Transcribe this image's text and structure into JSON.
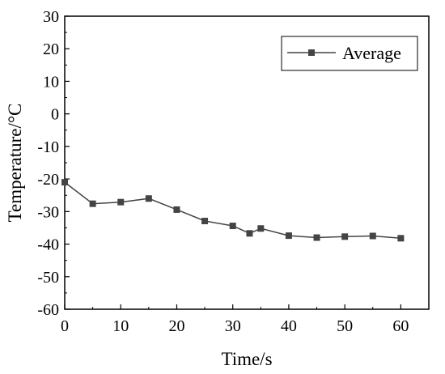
{
  "chart_data": {
    "type": "line",
    "title": "",
    "xlabel": "Time/s",
    "ylabel": "Temperature/°C",
    "xlim": [
      0,
      65
    ],
    "ylim": [
      -60,
      30
    ],
    "xticks": [
      0,
      10,
      20,
      30,
      40,
      50,
      60
    ],
    "yticks": [
      -60,
      -50,
      -40,
      -30,
      -20,
      -10,
      0,
      10,
      20,
      30
    ],
    "grid": false,
    "legend_position": "top-right",
    "series": [
      {
        "name": "Average",
        "color": "#444444",
        "marker": "square",
        "x": [
          0,
          5,
          10,
          15,
          20,
          25,
          30,
          33,
          35,
          40,
          45,
          50,
          55,
          60
        ],
        "y": [
          -21.0,
          -27.6,
          -27.1,
          -26.0,
          -29.4,
          -32.9,
          -34.4,
          -36.7,
          -35.2,
          -37.4,
          -38.0,
          -37.7,
          -37.5,
          -38.2
        ]
      }
    ]
  }
}
